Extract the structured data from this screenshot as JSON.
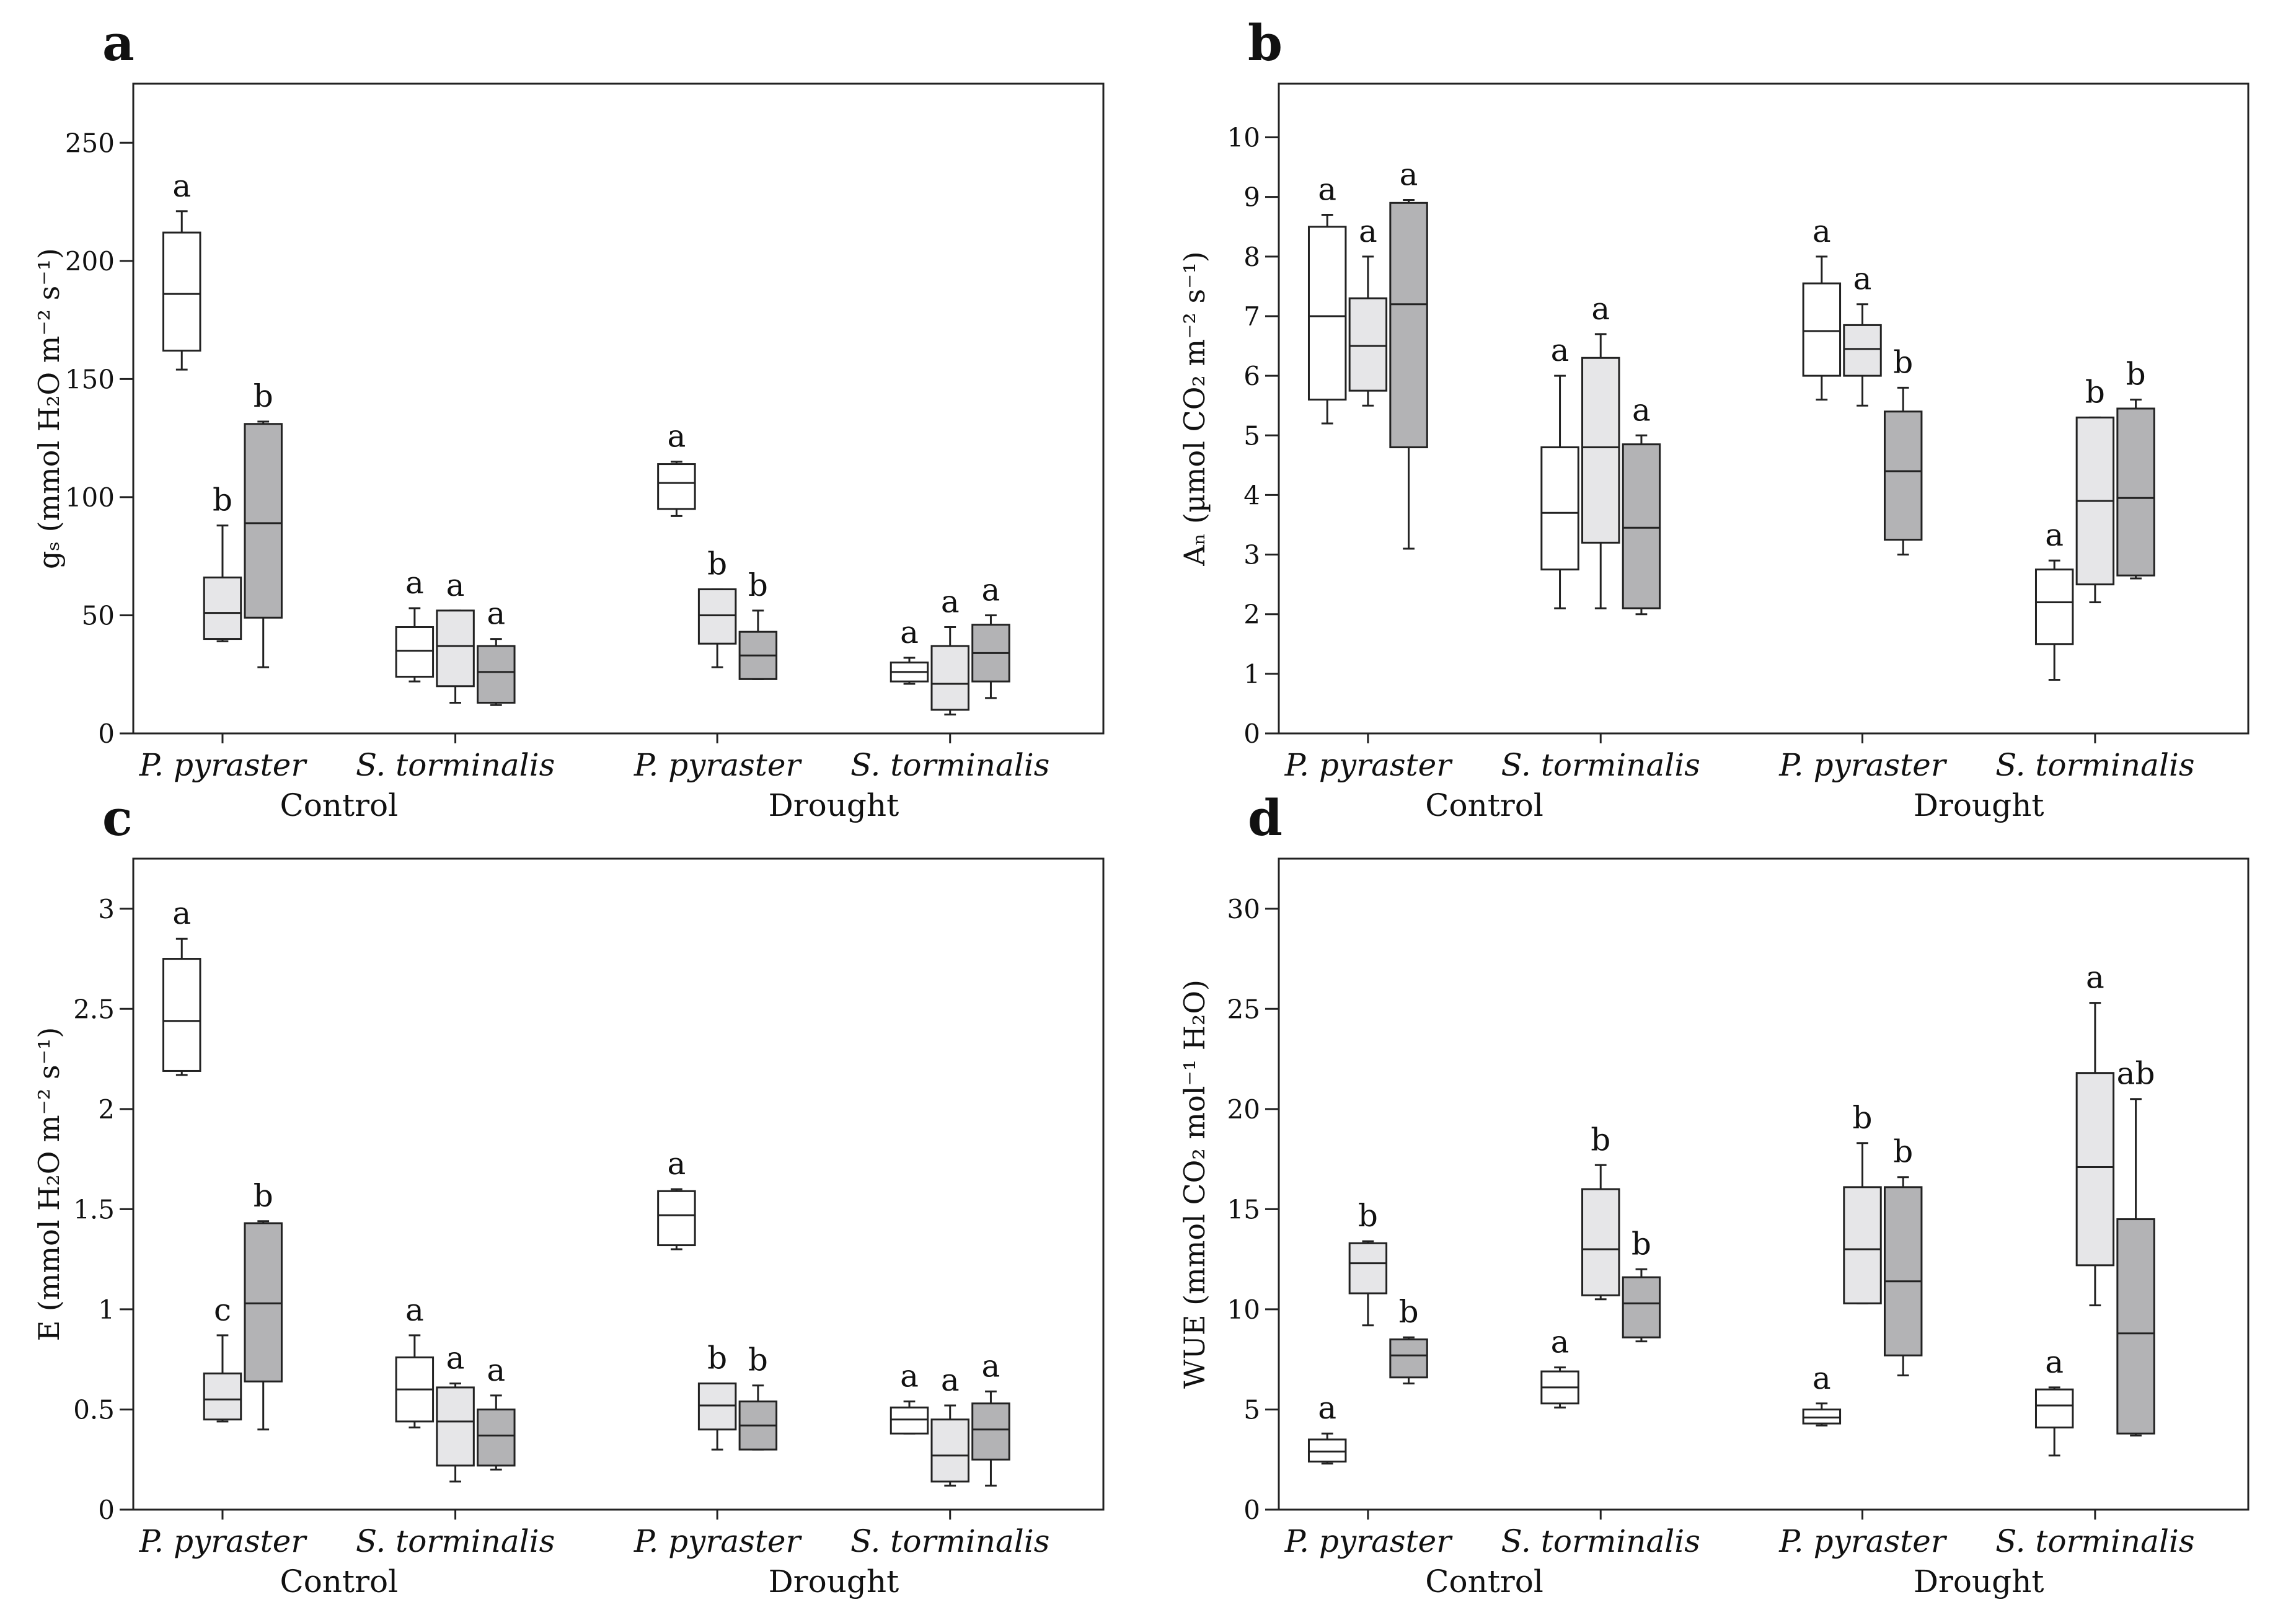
{
  "colors": {
    "box_white": "#ffffff",
    "box_light": "#e6e6e8",
    "box_dark": "#b3b3b5",
    "stroke": "#222222"
  },
  "chart_data": [
    {
      "type": "box",
      "panel_label": "a",
      "ylabel": "gₛ (mmol H₂O m⁻² s⁻¹)",
      "ylim": [
        0,
        275
      ],
      "yticks": [
        "0",
        "50",
        "100",
        "150",
        "200",
        "250"
      ],
      "ytick_values": [
        0,
        50,
        100,
        150,
        200,
        250
      ],
      "categories": [
        "P. pyraster",
        "S. torminalis",
        "P. pyraster",
        "S. torminalis"
      ],
      "groups": [
        "Control",
        "Drought"
      ],
      "boxes": [
        {
          "cat": 0,
          "slot": 0,
          "min": 154,
          "q1": 162,
          "median": 186,
          "q3": 212,
          "max": 221,
          "sig": "a"
        },
        {
          "cat": 0,
          "slot": 1,
          "min": 39,
          "q1": 40,
          "median": 51,
          "q3": 66,
          "max": 88,
          "sig": "b"
        },
        {
          "cat": 0,
          "slot": 2,
          "min": 28,
          "q1": 49,
          "median": 89,
          "q3": 131,
          "max": 132,
          "sig": "b"
        },
        {
          "cat": 1,
          "slot": 0,
          "min": 22,
          "q1": 24,
          "median": 35,
          "q3": 45,
          "max": 53,
          "sig": "a"
        },
        {
          "cat": 1,
          "slot": 1,
          "min": 13,
          "q1": 20,
          "median": 37,
          "q3": 52,
          "max": 52,
          "sig": "a"
        },
        {
          "cat": 1,
          "slot": 2,
          "min": 12,
          "q1": 13,
          "median": 26,
          "q3": 37,
          "max": 40,
          "sig": "a"
        },
        {
          "cat": 2,
          "slot": 0,
          "min": 92,
          "q1": 95,
          "median": 106,
          "q3": 114,
          "max": 115,
          "sig": "a"
        },
        {
          "cat": 2,
          "slot": 1,
          "min": 28,
          "q1": 38,
          "median": 50,
          "q3": 61,
          "max": 61,
          "sig": "b"
        },
        {
          "cat": 2,
          "slot": 2,
          "min": 23,
          "q1": 23,
          "median": 33,
          "q3": 43,
          "max": 52,
          "sig": "b"
        },
        {
          "cat": 3,
          "slot": 0,
          "min": 21,
          "q1": 22,
          "median": 26,
          "q3": 30,
          "max": 32,
          "sig": "a"
        },
        {
          "cat": 3,
          "slot": 1,
          "min": 8,
          "q1": 10,
          "median": 21,
          "q3": 37,
          "max": 45,
          "sig": "a"
        },
        {
          "cat": 3,
          "slot": 2,
          "min": 15,
          "q1": 22,
          "median": 34,
          "q3": 46,
          "max": 50,
          "sig": "a"
        }
      ]
    },
    {
      "type": "box",
      "panel_label": "b",
      "ylabel": "Aₙ (µmol CO₂ m⁻² s⁻¹)",
      "ylim": [
        0,
        10.9
      ],
      "yticks": [
        "0",
        "1",
        "2",
        "3",
        "4",
        "5",
        "6",
        "7",
        "8",
        "9",
        "10"
      ],
      "ytick_values": [
        0,
        1,
        2,
        3,
        4,
        5,
        6,
        7,
        8,
        9,
        10
      ],
      "categories": [
        "P. pyraster",
        "S. torminalis",
        "P. pyraster",
        "S. torminalis"
      ],
      "groups": [
        "Control",
        "Drought"
      ],
      "boxes": [
        {
          "cat": 0,
          "slot": 0,
          "min": 5.2,
          "q1": 5.6,
          "median": 7.0,
          "q3": 8.5,
          "max": 8.7,
          "sig": "a"
        },
        {
          "cat": 0,
          "slot": 1,
          "min": 5.5,
          "q1": 5.75,
          "median": 6.5,
          "q3": 7.3,
          "max": 8.0,
          "sig": "a"
        },
        {
          "cat": 0,
          "slot": 2,
          "min": 3.1,
          "q1": 4.8,
          "median": 7.2,
          "q3": 8.9,
          "max": 8.95,
          "sig": "a"
        },
        {
          "cat": 1,
          "slot": 0,
          "min": 2.1,
          "q1": 2.75,
          "median": 3.7,
          "q3": 4.8,
          "max": 6.0,
          "sig": "a"
        },
        {
          "cat": 1,
          "slot": 1,
          "min": 2.1,
          "q1": 3.2,
          "median": 4.8,
          "q3": 6.3,
          "max": 6.7,
          "sig": "a"
        },
        {
          "cat": 1,
          "slot": 2,
          "min": 2.0,
          "q1": 2.1,
          "median": 3.45,
          "q3": 4.85,
          "max": 5.0,
          "sig": "a"
        },
        {
          "cat": 2,
          "slot": 0,
          "min": 5.6,
          "q1": 6.0,
          "median": 6.75,
          "q3": 7.55,
          "max": 8.0,
          "sig": "a"
        },
        {
          "cat": 2,
          "slot": 1,
          "min": 5.5,
          "q1": 6.0,
          "median": 6.45,
          "q3": 6.85,
          "max": 7.2,
          "sig": "a"
        },
        {
          "cat": 2,
          "slot": 2,
          "min": 3.0,
          "q1": 3.25,
          "median": 4.4,
          "q3": 5.4,
          "max": 5.8,
          "sig": "b"
        },
        {
          "cat": 3,
          "slot": 0,
          "min": 0.9,
          "q1": 1.5,
          "median": 2.2,
          "q3": 2.75,
          "max": 2.9,
          "sig": "a"
        },
        {
          "cat": 3,
          "slot": 1,
          "min": 2.2,
          "q1": 2.5,
          "median": 3.9,
          "q3": 5.3,
          "max": 5.3,
          "sig": "b"
        },
        {
          "cat": 3,
          "slot": 2,
          "min": 2.6,
          "q1": 2.65,
          "median": 3.95,
          "q3": 5.45,
          "max": 5.6,
          "sig": "b"
        }
      ]
    },
    {
      "type": "box",
      "panel_label": "c",
      "ylabel": "E (mmol H₂O m⁻² s⁻¹)",
      "ylim": [
        0,
        3.25
      ],
      "yticks": [
        "0",
        "0.5",
        "1",
        "1.5",
        "2",
        "2.5",
        "3"
      ],
      "ytick_values": [
        0,
        0.5,
        1,
        1.5,
        2,
        2.5,
        3
      ],
      "categories": [
        "P. pyraster",
        "S. torminalis",
        "P. pyraster",
        "S. torminalis"
      ],
      "groups": [
        "Control",
        "Drought"
      ],
      "boxes": [
        {
          "cat": 0,
          "slot": 0,
          "min": 2.17,
          "q1": 2.19,
          "median": 2.44,
          "q3": 2.75,
          "max": 2.85,
          "sig": "a"
        },
        {
          "cat": 0,
          "slot": 1,
          "min": 0.44,
          "q1": 0.45,
          "median": 0.55,
          "q3": 0.68,
          "max": 0.87,
          "sig": "c"
        },
        {
          "cat": 0,
          "slot": 2,
          "min": 0.4,
          "q1": 0.64,
          "median": 1.03,
          "q3": 1.43,
          "max": 1.44,
          "sig": "b"
        },
        {
          "cat": 1,
          "slot": 0,
          "min": 0.41,
          "q1": 0.44,
          "median": 0.6,
          "q3": 0.76,
          "max": 0.87,
          "sig": "a"
        },
        {
          "cat": 1,
          "slot": 1,
          "min": 0.14,
          "q1": 0.22,
          "median": 0.44,
          "q3": 0.61,
          "max": 0.63,
          "sig": "a"
        },
        {
          "cat": 1,
          "slot": 2,
          "min": 0.2,
          "q1": 0.22,
          "median": 0.37,
          "q3": 0.5,
          "max": 0.57,
          "sig": "a"
        },
        {
          "cat": 2,
          "slot": 0,
          "min": 1.3,
          "q1": 1.32,
          "median": 1.47,
          "q3": 1.59,
          "max": 1.6,
          "sig": "a"
        },
        {
          "cat": 2,
          "slot": 1,
          "min": 0.3,
          "q1": 0.4,
          "median": 0.52,
          "q3": 0.63,
          "max": 0.63,
          "sig": "b"
        },
        {
          "cat": 2,
          "slot": 2,
          "min": 0.3,
          "q1": 0.3,
          "median": 0.42,
          "q3": 0.54,
          "max": 0.62,
          "sig": "b"
        },
        {
          "cat": 3,
          "slot": 0,
          "min": 0.38,
          "q1": 0.38,
          "median": 0.45,
          "q3": 0.51,
          "max": 0.54,
          "sig": "a"
        },
        {
          "cat": 3,
          "slot": 1,
          "min": 0.12,
          "q1": 0.14,
          "median": 0.27,
          "q3": 0.45,
          "max": 0.52,
          "sig": "a"
        },
        {
          "cat": 3,
          "slot": 2,
          "min": 0.12,
          "q1": 0.25,
          "median": 0.4,
          "q3": 0.53,
          "max": 0.59,
          "sig": "a"
        }
      ]
    },
    {
      "type": "box",
      "panel_label": "d",
      "ylabel": "WUE (mmol CO₂ mol⁻¹ H₂O)",
      "ylim": [
        0,
        32.5
      ],
      "yticks": [
        "0",
        "5",
        "10",
        "15",
        "20",
        "25",
        "30"
      ],
      "ytick_values": [
        0,
        5,
        10,
        15,
        20,
        25,
        30
      ],
      "categories": [
        "P. pyraster",
        "S. torminalis",
        "P. pyraster",
        "S. torminalis"
      ],
      "groups": [
        "Control",
        "Drought"
      ],
      "boxes": [
        {
          "cat": 0,
          "slot": 0,
          "min": 2.3,
          "q1": 2.4,
          "median": 2.9,
          "q3": 3.5,
          "max": 3.8,
          "sig": "a"
        },
        {
          "cat": 0,
          "slot": 1,
          "min": 9.2,
          "q1": 10.8,
          "median": 12.3,
          "q3": 13.3,
          "max": 13.4,
          "sig": "b"
        },
        {
          "cat": 0,
          "slot": 2,
          "min": 6.3,
          "q1": 6.6,
          "median": 7.7,
          "q3": 8.5,
          "max": 8.6,
          "sig": "b"
        },
        {
          "cat": 1,
          "slot": 0,
          "min": 5.1,
          "q1": 5.3,
          "median": 6.1,
          "q3": 6.9,
          "max": 7.1,
          "sig": "a"
        },
        {
          "cat": 1,
          "slot": 1,
          "min": 10.5,
          "q1": 10.7,
          "median": 13.0,
          "q3": 16.0,
          "max": 17.2,
          "sig": "b"
        },
        {
          "cat": 1,
          "slot": 2,
          "min": 8.4,
          "q1": 8.6,
          "median": 10.3,
          "q3": 11.6,
          "max": 12.0,
          "sig": "b"
        },
        {
          "cat": 2,
          "slot": 0,
          "min": 4.2,
          "q1": 4.3,
          "median": 4.6,
          "q3": 5.0,
          "max": 5.3,
          "sig": "a"
        },
        {
          "cat": 2,
          "slot": 1,
          "min": 10.3,
          "q1": 10.3,
          "median": 13.0,
          "q3": 16.1,
          "max": 18.3,
          "sig": "b"
        },
        {
          "cat": 2,
          "slot": 2,
          "min": 6.7,
          "q1": 7.7,
          "median": 11.4,
          "q3": 16.1,
          "max": 16.6,
          "sig": "b"
        },
        {
          "cat": 3,
          "slot": 0,
          "min": 2.7,
          "q1": 4.1,
          "median": 5.2,
          "q3": 6.0,
          "max": 6.1,
          "sig": "a"
        },
        {
          "cat": 3,
          "slot": 1,
          "min": 10.2,
          "q1": 12.2,
          "median": 17.1,
          "q3": 21.8,
          "max": 25.3,
          "sig": "a"
        },
        {
          "cat": 3,
          "slot": 2,
          "min": 3.7,
          "q1": 3.8,
          "median": 8.8,
          "q3": 14.5,
          "max": 20.5,
          "sig": "ab"
        }
      ]
    }
  ]
}
